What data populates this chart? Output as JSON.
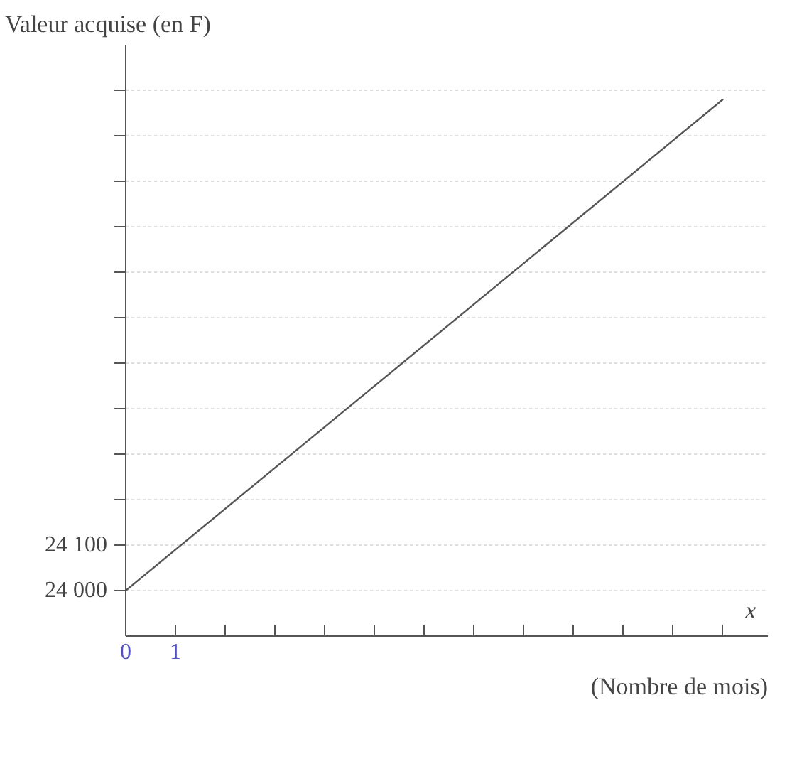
{
  "chart_data": {
    "type": "line",
    "ylabel": "Valeur acquise (en F)",
    "xlabel": "(Nombre de mois)",
    "annotations": [
      "x"
    ],
    "x": [
      0,
      12
    ],
    "series": [
      {
        "color": "#555555",
        "values": [
          24000,
          25080
        ]
      }
    ],
    "xlim": [
      0,
      12.9
    ],
    "xticks": [
      0,
      1,
      {
        "value": 2,
        "label": null
      },
      {
        "value": 3,
        "label": null
      },
      {
        "value": 4,
        "label": null
      },
      {
        "value": 5,
        "label": null
      },
      {
        "value": 6,
        "label": null
      },
      {
        "value": 7,
        "label": null
      },
      {
        "value": 8,
        "label": null
      },
      {
        "value": 9,
        "label": null
      },
      {
        "value": 10,
        "label": null
      },
      {
        "value": 11,
        "label": null
      },
      {
        "value": 12,
        "label": null
      }
    ],
    "ylim": [
      23900,
      25200
    ],
    "yticks": [
      {
        "value": 24000,
        "label": "24 000"
      },
      {
        "value": 24100,
        "label": "24 100"
      },
      {
        "value": 24200,
        "label": null
      },
      {
        "value": 24300,
        "label": null
      },
      {
        "value": 24400,
        "label": null
      },
      {
        "value": 24500,
        "label": null
      },
      {
        "value": 24600,
        "label": null
      },
      {
        "value": 24700,
        "label": null
      },
      {
        "value": 24800,
        "label": null
      },
      {
        "value": 24900,
        "label": null
      },
      {
        "value": 25000,
        "label": null
      },
      {
        "value": 25100,
        "label": null
      }
    ],
    "grid": "y",
    "line_style": "solid"
  }
}
